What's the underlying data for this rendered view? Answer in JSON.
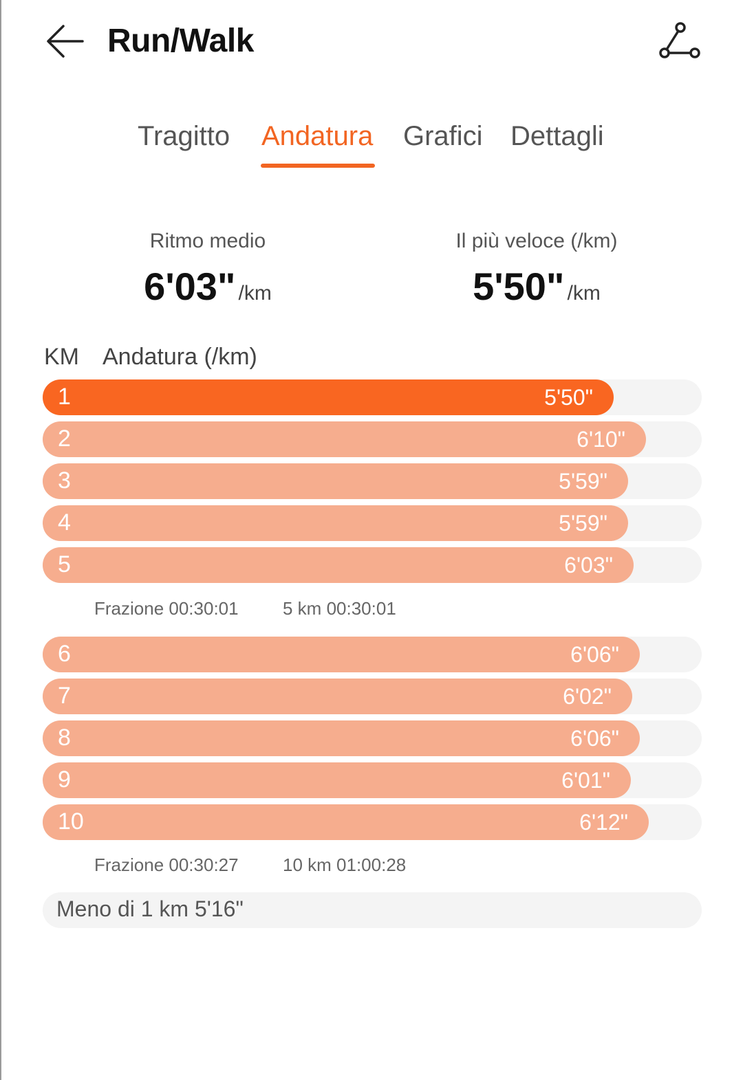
{
  "header": {
    "title": "Run/Walk",
    "back_icon": "arrow-left-icon",
    "route_icon": "route-icon"
  },
  "tabs": [
    {
      "label": "Tragitto",
      "active": false
    },
    {
      "label": "Andatura",
      "active": true
    },
    {
      "label": "Grafici",
      "active": false
    },
    {
      "label": "Dettagli",
      "active": false
    }
  ],
  "summary": {
    "avg_label": "Ritmo medio",
    "avg_value": "6'03\"",
    "avg_unit": "/km",
    "fast_label": "Il più veloce (/km)",
    "fast_value": "5'50\"",
    "fast_unit": "/km"
  },
  "table": {
    "km_header": "KM",
    "pace_header": "Andatura (/km)"
  },
  "splits": [
    {
      "km": "1",
      "pace": "5'50\"",
      "bar_fraction": 0.866,
      "highlight": true
    },
    {
      "km": "2",
      "pace": "6'10\"",
      "bar_fraction": 0.915,
      "highlight": false
    },
    {
      "km": "3",
      "pace": "5'59\"",
      "bar_fraction": 0.888,
      "highlight": false
    },
    {
      "km": "4",
      "pace": "5'59\"",
      "bar_fraction": 0.888,
      "highlight": false
    },
    {
      "km": "5",
      "pace": "6'03\"",
      "bar_fraction": 0.897,
      "highlight": false
    },
    {
      "km": "6",
      "pace": "6'06\"",
      "bar_fraction": 0.906,
      "highlight": false
    },
    {
      "km": "7",
      "pace": "6'02\"",
      "bar_fraction": 0.895,
      "highlight": false
    },
    {
      "km": "8",
      "pace": "6'06\"",
      "bar_fraction": 0.906,
      "highlight": false
    },
    {
      "km": "9",
      "pace": "6'01\"",
      "bar_fraction": 0.893,
      "highlight": false
    },
    {
      "km": "10",
      "pace": "6'12\"",
      "bar_fraction": 0.92,
      "highlight": false
    }
  ],
  "segments": [
    {
      "split": "Frazione 00:30:01",
      "total": "5 km 00:30:01"
    },
    {
      "split": "Frazione 00:30:27",
      "total": "10 km 01:00:28"
    }
  ],
  "remainder": "Meno di 1 km 5'16\"",
  "colors": {
    "accent": "#f26522",
    "bar_highlight": "#f96621",
    "bar_normal": "#f6ad8e",
    "track": "#f4f4f4"
  }
}
